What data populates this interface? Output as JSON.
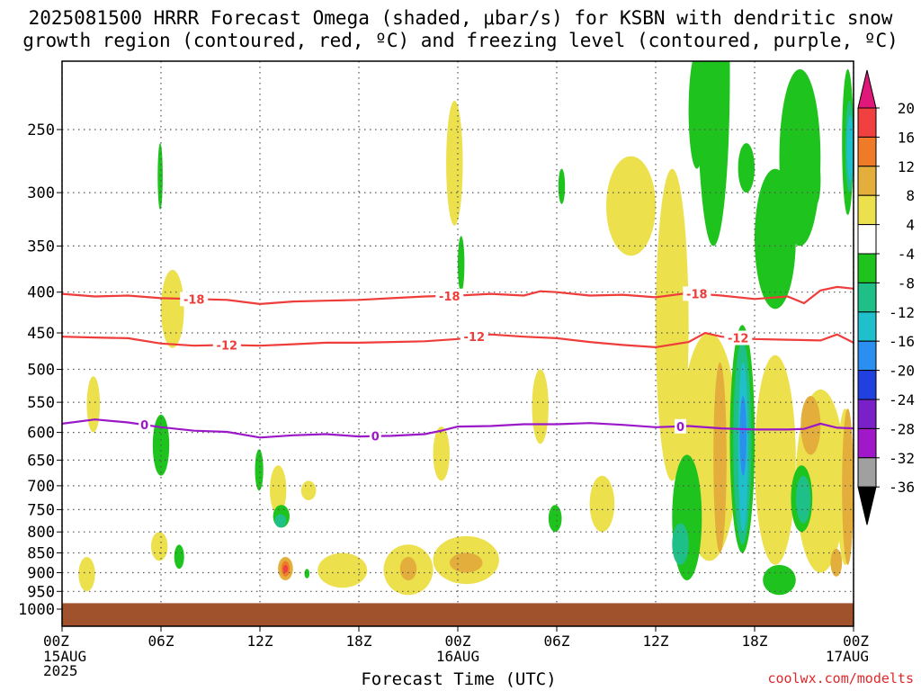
{
  "title_lines": [
    "2025081500 HRRR Forecast Omega (shaded, μbar/s) for KSBN with dendritic snow",
    "growth region (contoured, red, ºC) and freezing level (contoured, purple, ºC)"
  ],
  "credit": "coolwx.com/modelts",
  "chart_data": {
    "type": "heatmap",
    "xlabel": "Forecast Time (UTC)",
    "ylabel": "",
    "x_ticks": [
      {
        "hour": 0,
        "label": "00Z",
        "sub": [
          "15AUG",
          "2025"
        ]
      },
      {
        "hour": 6,
        "label": "06Z",
        "sub": []
      },
      {
        "hour": 12,
        "label": "12Z",
        "sub": []
      },
      {
        "hour": 18,
        "label": "18Z",
        "sub": []
      },
      {
        "hour": 24,
        "label": "00Z",
        "sub": [
          "16AUG"
        ]
      },
      {
        "hour": 30,
        "label": "06Z",
        "sub": []
      },
      {
        "hour": 36,
        "label": "12Z",
        "sub": []
      },
      {
        "hour": 42,
        "label": "18Z",
        "sub": []
      },
      {
        "hour": 48,
        "label": "00Z",
        "sub": [
          "17AUG"
        ]
      }
    ],
    "xlim": [
      0,
      48
    ],
    "y_ticks": [
      250,
      300,
      350,
      400,
      450,
      500,
      550,
      600,
      650,
      700,
      750,
      800,
      850,
      900,
      950,
      1000
    ],
    "ylim": [
      1025,
      200
    ],
    "y_scale": "log-pressure",
    "colorbar": {
      "labels": [
        "20",
        "16",
        "12",
        "8",
        "4",
        "-4",
        "-8",
        "-12",
        "-16",
        "-20",
        "-24",
        "-28",
        "-32",
        "-36"
      ],
      "colors": [
        "#e0187a",
        "#f04040",
        "#ef7b28",
        "#e3ae3c",
        "#ece04c",
        "#ffffff",
        "#1ec31e",
        "#1fbf88",
        "#1fbfcc",
        "#2a8fef",
        "#2040e0",
        "#7a20c8",
        "#a018c8",
        "#a0a0a0",
        "#000000"
      ]
    },
    "ground_level": 983,
    "dgz_contours": [
      {
        "label": "-18",
        "color": "#ee3d3a",
        "points": [
          [
            0,
            402
          ],
          [
            2,
            405
          ],
          [
            4,
            404
          ],
          [
            6,
            407
          ],
          [
            8,
            408
          ],
          [
            10,
            409
          ],
          [
            12,
            414
          ],
          [
            14,
            411
          ],
          [
            16,
            410
          ],
          [
            18,
            409
          ],
          [
            20,
            407
          ],
          [
            22,
            405
          ],
          [
            24,
            404
          ],
          [
            26,
            402
          ],
          [
            28,
            404
          ],
          [
            29,
            399
          ],
          [
            30,
            400
          ],
          [
            32,
            404
          ],
          [
            34,
            403
          ],
          [
            36,
            406
          ],
          [
            38,
            401
          ],
          [
            40,
            404
          ],
          [
            42,
            408
          ],
          [
            44,
            405
          ],
          [
            45,
            413
          ],
          [
            46,
            398
          ],
          [
            47,
            394
          ],
          [
            48,
            396
          ]
        ],
        "label_hours": [
          8,
          23.5,
          38.5
        ]
      },
      {
        "label": "-12",
        "color": "#ee3d3a",
        "points": [
          [
            0,
            455
          ],
          [
            2,
            456
          ],
          [
            4,
            457
          ],
          [
            6,
            464
          ],
          [
            8,
            467
          ],
          [
            10,
            466
          ],
          [
            12,
            467
          ],
          [
            14,
            465
          ],
          [
            16,
            463
          ],
          [
            18,
            463
          ],
          [
            20,
            462
          ],
          [
            22,
            461
          ],
          [
            24,
            458
          ],
          [
            26,
            452
          ],
          [
            28,
            455
          ],
          [
            30,
            457
          ],
          [
            32,
            462
          ],
          [
            34,
            466
          ],
          [
            36,
            469
          ],
          [
            38,
            462
          ],
          [
            39,
            450
          ],
          [
            40,
            455
          ],
          [
            42,
            458
          ],
          [
            44,
            459
          ],
          [
            46,
            460
          ],
          [
            47,
            452
          ],
          [
            48,
            463
          ]
        ],
        "label_hours": [
          10,
          25,
          41
        ]
      }
    ],
    "freezing_contour": {
      "label": "0",
      "color": "#9a18c8",
      "points": [
        [
          0,
          585
        ],
        [
          2,
          578
        ],
        [
          4,
          583
        ],
        [
          6,
          591
        ],
        [
          8,
          597
        ],
        [
          10,
          599
        ],
        [
          12,
          609
        ],
        [
          14,
          605
        ],
        [
          16,
          603
        ],
        [
          18,
          607
        ],
        [
          20,
          606
        ],
        [
          22,
          603
        ],
        [
          23,
          597
        ],
        [
          24,
          590
        ],
        [
          26,
          589
        ],
        [
          28,
          586
        ],
        [
          30,
          586
        ],
        [
          32,
          584
        ],
        [
          34,
          587
        ],
        [
          36,
          591
        ],
        [
          38,
          589
        ],
        [
          40,
          593
        ],
        [
          42,
          595
        ],
        [
          44,
          595
        ],
        [
          45,
          594
        ],
        [
          46,
          585
        ],
        [
          47,
          592
        ],
        [
          48,
          593
        ]
      ],
      "label_hours": [
        5,
        19,
        37.5
      ]
    },
    "omega_areas": [
      {
        "value": 4,
        "x": [
          1.0,
          2.0
        ],
        "p": [
          860,
          950
        ]
      },
      {
        "value": 4,
        "x": [
          1.5,
          2.3
        ],
        "p": [
          510,
          600
        ]
      },
      {
        "value": 4,
        "x": [
          6.0,
          7.4
        ],
        "p": [
          375,
          470
        ]
      },
      {
        "value": 4,
        "x": [
          5.4,
          6.4
        ],
        "p": [
          800,
          870
        ]
      },
      {
        "value": 4,
        "x": [
          12.6,
          13.6
        ],
        "p": [
          660,
          760
        ]
      },
      {
        "value": 4,
        "x": [
          14.5,
          15.4
        ],
        "p": [
          690,
          730
        ]
      },
      {
        "value": 4,
        "x": [
          15.5,
          18.5
        ],
        "p": [
          850,
          940
        ]
      },
      {
        "value": 4,
        "x": [
          19.5,
          22.5
        ],
        "p": [
          830,
          960
        ]
      },
      {
        "value": 4,
        "x": [
          22.5,
          26.5
        ],
        "p": [
          810,
          930
        ]
      },
      {
        "value": 4,
        "x": [
          23.3,
          24.3
        ],
        "p": [
          230,
          330
        ]
      },
      {
        "value": 4,
        "x": [
          22.5,
          23.5
        ],
        "p": [
          590,
          690
        ]
      },
      {
        "value": 4,
        "x": [
          28.5,
          29.5
        ],
        "p": [
          500,
          620
        ]
      },
      {
        "value": 4,
        "x": [
          32.0,
          33.5
        ],
        "p": [
          680,
          800
        ]
      },
      {
        "value": 4,
        "x": [
          33.0,
          36.0
        ],
        "p": [
          270,
          360
        ]
      },
      {
        "value": 4,
        "x": [
          36.0,
          38.0
        ],
        "p": [
          280,
          690
        ]
      },
      {
        "value": 4,
        "x": [
          37.5,
          41.0
        ],
        "p": [
          450,
          870
        ]
      },
      {
        "value": 4,
        "x": [
          42.0,
          44.5
        ],
        "p": [
          480,
          880
        ]
      },
      {
        "value": 4,
        "x": [
          44.5,
          47.5
        ],
        "p": [
          530,
          900
        ]
      },
      {
        "value": 4,
        "x": [
          47.0,
          48.0
        ],
        "p": [
          560,
          880
        ]
      },
      {
        "value": 8,
        "x": [
          13.1,
          14.0
        ],
        "p": [
          860,
          920
        ]
      },
      {
        "value": 8,
        "x": [
          20.5,
          21.5
        ],
        "p": [
          860,
          920
        ]
      },
      {
        "value": 8,
        "x": [
          23.5,
          25.5
        ],
        "p": [
          850,
          900
        ]
      },
      {
        "value": 8,
        "x": [
          39.5,
          40.3
        ],
        "p": [
          490,
          850
        ]
      },
      {
        "value": 8,
        "x": [
          44.8,
          46.0
        ],
        "p": [
          540,
          640
        ]
      },
      {
        "value": 8,
        "x": [
          46.6,
          47.3
        ],
        "p": [
          840,
          910
        ]
      },
      {
        "value": 8,
        "x": [
          47.3,
          48.0
        ],
        "p": [
          560,
          880
        ]
      },
      {
        "value": 12,
        "x": [
          13.3,
          13.8
        ],
        "p": [
          870,
          910
        ]
      },
      {
        "value": 16,
        "x": [
          13.4,
          13.7
        ],
        "p": [
          880,
          900
        ]
      },
      {
        "value": -4,
        "x": [
          5.8,
          6.1
        ],
        "p": [
          260,
          315
        ]
      },
      {
        "value": -4,
        "x": [
          5.5,
          6.5
        ],
        "p": [
          570,
          680
        ]
      },
      {
        "value": -4,
        "x": [
          6.8,
          7.4
        ],
        "p": [
          830,
          890
        ]
      },
      {
        "value": -4,
        "x": [
          11.7,
          12.2
        ],
        "p": [
          630,
          710
        ]
      },
      {
        "value": -4,
        "x": [
          12.8,
          13.8
        ],
        "p": [
          740,
          790
        ]
      },
      {
        "value": -4,
        "x": [
          14.7,
          15.0
        ],
        "p": [
          890,
          915
        ]
      },
      {
        "value": -4,
        "x": [
          24.0,
          24.4
        ],
        "p": [
          340,
          400
        ]
      },
      {
        "value": -4,
        "x": [
          30.1,
          30.5
        ],
        "p": [
          280,
          310
        ]
      },
      {
        "value": -4,
        "x": [
          29.5,
          30.3
        ],
        "p": [
          740,
          800
        ]
      },
      {
        "value": -4,
        "x": [
          38.0,
          39.0
        ],
        "p": [
          200,
          280
        ]
      },
      {
        "value": -4,
        "x": [
          38.5,
          40.5
        ],
        "p": [
          130,
          350
        ]
      },
      {
        "value": -4,
        "x": [
          41.0,
          42.0
        ],
        "p": [
          260,
          300
        ]
      },
      {
        "value": -4,
        "x": [
          42.0,
          44.5
        ],
        "p": [
          280,
          420
        ]
      },
      {
        "value": -4,
        "x": [
          43.5,
          46.0
        ],
        "p": [
          210,
          350
        ]
      },
      {
        "value": -4,
        "x": [
          45.5,
          46.0
        ],
        "p": [
          270,
          310
        ]
      },
      {
        "value": -4,
        "x": [
          47.3,
          48.0
        ],
        "p": [
          210,
          320
        ]
      },
      {
        "value": -4,
        "x": [
          37.0,
          38.8
        ],
        "p": [
          640,
          920
        ]
      },
      {
        "value": -4,
        "x": [
          40.5,
          42.0
        ],
        "p": [
          440,
          850
        ]
      },
      {
        "value": -4,
        "x": [
          42.5,
          44.5
        ],
        "p": [
          880,
          960
        ]
      },
      {
        "value": -4,
        "x": [
          44.2,
          45.5
        ],
        "p": [
          660,
          800
        ]
      },
      {
        "value": -8,
        "x": [
          12.9,
          13.6
        ],
        "p": [
          760,
          790
        ]
      },
      {
        "value": -8,
        "x": [
          37.0,
          38.0
        ],
        "p": [
          780,
          880
        ]
      },
      {
        "value": -8,
        "x": [
          40.7,
          41.8
        ],
        "p": [
          460,
          830
        ]
      },
      {
        "value": -8,
        "x": [
          44.5,
          45.4
        ],
        "p": [
          680,
          780
        ]
      },
      {
        "value": -8,
        "x": [
          47.5,
          48.0
        ],
        "p": [
          230,
          300
        ]
      },
      {
        "value": -12,
        "x": [
          41.0,
          41.6
        ],
        "p": [
          490,
          800
        ]
      },
      {
        "value": -12,
        "x": [
          47.6,
          48.0
        ],
        "p": [
          240,
          290
        ]
      },
      {
        "value": -16,
        "x": [
          41.1,
          41.5
        ],
        "p": [
          540,
          680
        ]
      }
    ]
  }
}
